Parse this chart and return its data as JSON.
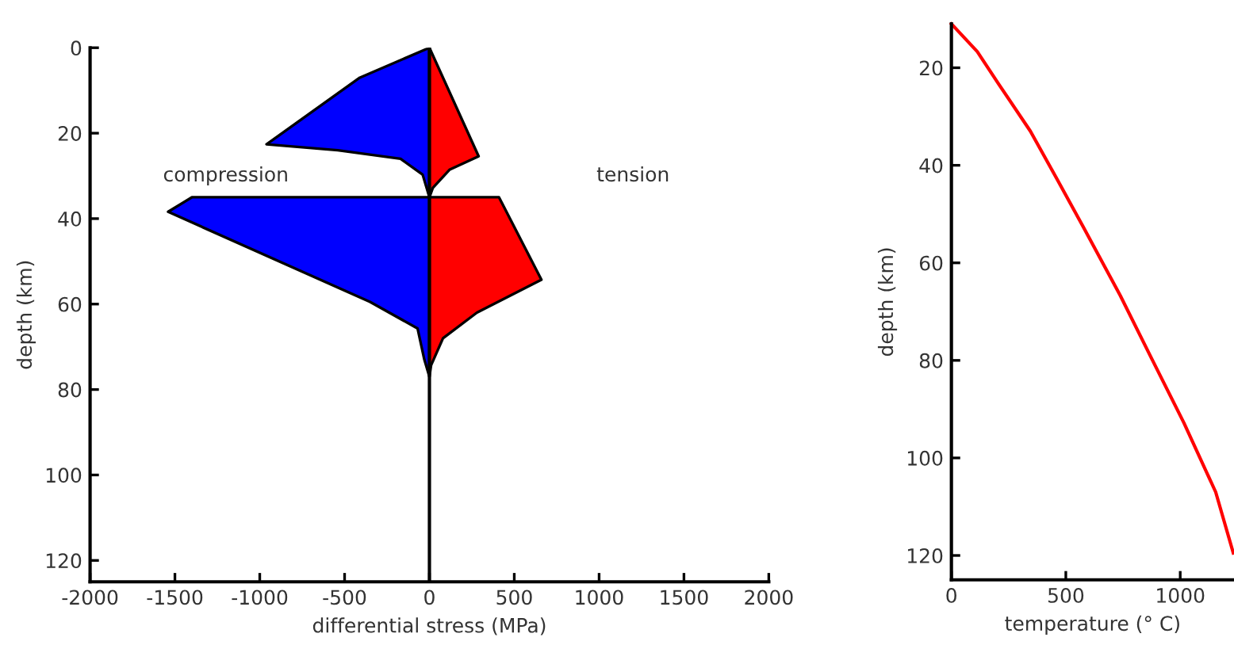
{
  "chart_data": [
    {
      "type": "area",
      "orientation": "horizontal",
      "xlabel": "differential stress (MPa)",
      "ylabel": "depth (km)",
      "annotations": [
        "compression",
        "tension"
      ],
      "series": [
        {
          "color": "#0000ff",
          "x": [
            0,
            7,
            22.6,
            24,
            26,
            29.7,
            35,
            35,
            38.4,
            59.5,
            65.7,
            73,
            77
          ],
          "values": [
            0,
            -410,
            -960,
            -540,
            -170,
            -40,
            0,
            -1400,
            -1540,
            -350,
            -70,
            -30,
            0
          ]
        },
        {
          "color": "#ff0000",
          "x": [
            0,
            25.4,
            28.5,
            32.8,
            35,
            35,
            54.3,
            62,
            68,
            74.3,
            77
          ],
          "values": [
            0,
            290,
            120,
            20,
            0,
            410,
            660,
            280,
            80,
            10,
            0
          ]
        }
      ],
      "ref_lines": [
        {
          "axis": "x",
          "value": 0,
          "color": "#000000"
        }
      ],
      "xlim": [
        -2000,
        2000
      ],
      "xticks": [
        -2000,
        -1500,
        -1000,
        -500,
        0,
        500,
        1000,
        1500,
        2000
      ],
      "ylim": [
        125,
        0
      ],
      "yticks": [
        0,
        20,
        40,
        60,
        80,
        100,
        120
      ]
    },
    {
      "type": "line",
      "xlabel": "temperature (° C)",
      "ylabel": "depth (km)",
      "series": [
        {
          "color": "#ff0000",
          "x": [
            0,
            113,
            206,
            345,
            461,
            576,
            738,
            877,
            1016,
            1155,
            1232
          ],
          "values": [
            11,
            16.7,
            23.3,
            33,
            42.8,
            52.6,
            66.7,
            79.8,
            92.8,
            107,
            119.5
          ]
        }
      ],
      "xlim": [
        0,
        1235
      ],
      "xticks": [
        0,
        500,
        1000
      ],
      "ylim": [
        125,
        11
      ],
      "yticks": [
        20,
        40,
        60,
        80,
        100,
        120
      ]
    }
  ]
}
